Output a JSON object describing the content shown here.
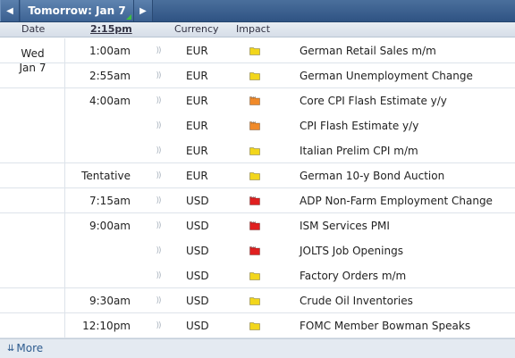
{
  "tab": {
    "prev_icon": "triangle-left-icon",
    "label": "Tomorrow: Jan 7",
    "next_icon": "triangle-right-icon",
    "prev_glyph": "◀",
    "next_glyph": "▶"
  },
  "header": {
    "date": "Date",
    "time": "2:15pm",
    "currency": "Currency",
    "impact": "Impact"
  },
  "date_block": {
    "weekday": "Wed",
    "day": "Jan 7"
  },
  "colors": {
    "high": "#e02020",
    "medium": "#f08a2a",
    "low": "#f2d61c"
  },
  "rows": [
    {
      "time": "1:00am",
      "currency": "EUR",
      "impact": "low",
      "event": "German Retail Sales m/m"
    },
    {
      "time": "2:55am",
      "currency": "EUR",
      "impact": "low",
      "event": "German Unemployment Change"
    },
    {
      "time": "4:00am",
      "currency": "EUR",
      "impact": "medium",
      "event": "Core CPI Flash Estimate y/y"
    },
    {
      "time": "",
      "currency": "EUR",
      "impact": "medium",
      "event": "CPI Flash Estimate y/y"
    },
    {
      "time": "",
      "currency": "EUR",
      "impact": "low",
      "event": "Italian Prelim CPI m/m"
    },
    {
      "time": "Tentative",
      "currency": "EUR",
      "impact": "low",
      "event": "German 10-y Bond Auction"
    },
    {
      "time": "7:15am",
      "currency": "USD",
      "impact": "high",
      "event": "ADP Non-Farm Employment Change"
    },
    {
      "time": "9:00am",
      "currency": "USD",
      "impact": "high",
      "event": "ISM Services PMI"
    },
    {
      "time": "",
      "currency": "USD",
      "impact": "high",
      "event": "JOLTS Job Openings"
    },
    {
      "time": "",
      "currency": "USD",
      "impact": "low",
      "event": "Factory Orders m/m"
    },
    {
      "time": "9:30am",
      "currency": "USD",
      "impact": "low",
      "event": "Crude Oil Inventories"
    },
    {
      "time": "12:10pm",
      "currency": "USD",
      "impact": "low",
      "event": "FOMC Member Bowman Speaks"
    }
  ],
  "footer": {
    "more_label": "More",
    "more_icon": "double-arrow-down-icon",
    "more_glyph": "⇊"
  },
  "sound_icon": "sound-wave-icon",
  "sound_glyph": "))"
}
